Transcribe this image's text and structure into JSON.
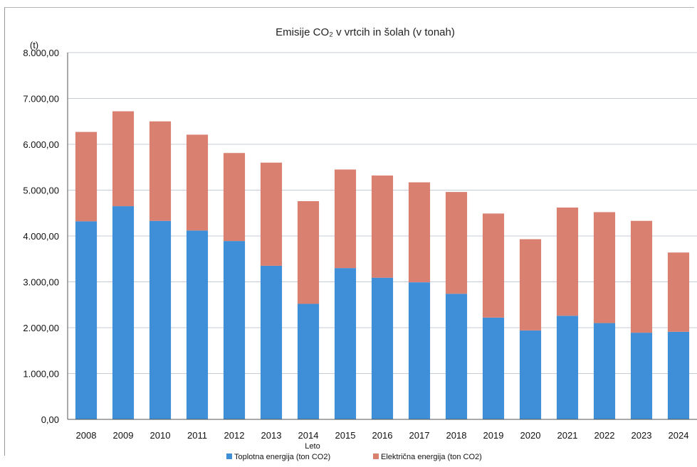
{
  "chart_data": {
    "type": "bar",
    "stacked": true,
    "title": "Emisije CO₂ v vrtcih in šolah (v tonah)",
    "ylabel": "(t)",
    "xlabel": "Leto",
    "ylim": [
      0,
      8000
    ],
    "ytick_labels": [
      "0,00",
      "1.000,00",
      "2.000,00",
      "3.000,00",
      "4.000,00",
      "5.000,00",
      "6.000,00",
      "7.000,00",
      "8.000,00"
    ],
    "grid": true,
    "legend_position": "bottom",
    "categories": [
      "2008",
      "2009",
      "2010",
      "2011",
      "2012",
      "2013",
      "2014",
      "2015",
      "2016",
      "2017",
      "2018",
      "2019",
      "2020",
      "2021",
      "2022",
      "2023",
      "2024"
    ],
    "series": [
      {
        "name": "Toplotna energija (ton CO2)",
        "color": "#3f8fd8",
        "values": [
          4320,
          4650,
          4330,
          4120,
          3890,
          3350,
          2520,
          3300,
          3090,
          2990,
          2740,
          2220,
          1940,
          2260,
          2100,
          1890,
          1910
        ]
      },
      {
        "name": "Električna energija (ton CO2)",
        "color": "#d98071",
        "values": [
          1950,
          2070,
          2170,
          2090,
          1920,
          2250,
          2240,
          2150,
          2230,
          2180,
          2220,
          2270,
          1990,
          2360,
          2420,
          2440,
          1730
        ]
      }
    ]
  }
}
